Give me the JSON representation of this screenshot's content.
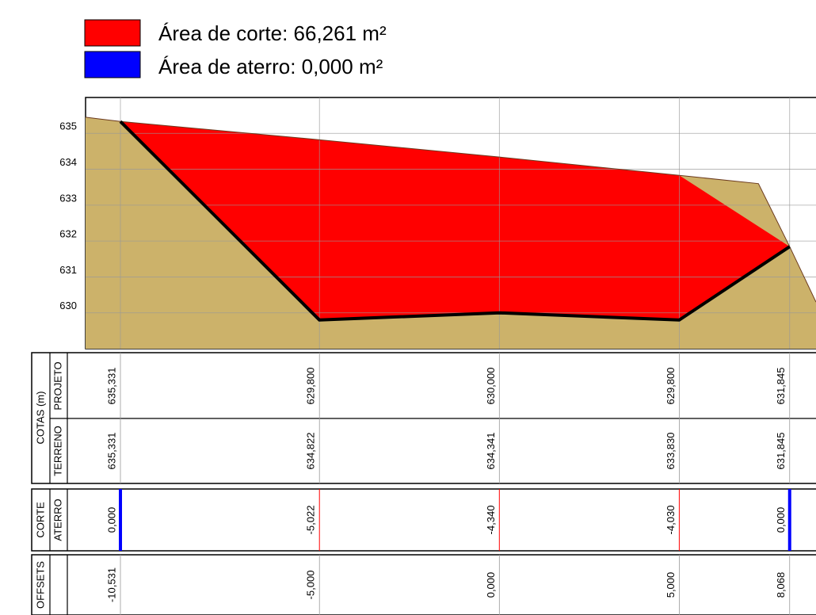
{
  "legend": [
    {
      "label": "Área de corte: 66,261 m²",
      "color": "#ff0000"
    },
    {
      "label": "Área de aterro: 0,000 m²",
      "color": "#0000ff"
    }
  ],
  "chart_data": {
    "type": "section",
    "xlim": [
      -11.5,
      8.8
    ],
    "ylim": [
      629.0,
      636.0
    ],
    "yticks": [
      630,
      631,
      632,
      633,
      634,
      635
    ],
    "grid": true,
    "ground_color": "#ccb26a",
    "cut_color": "#ff0000",
    "fill_color": "#0000ff",
    "ground_x": [
      -11.5,
      -10.531,
      -5,
      0,
      5,
      7.2,
      8.068,
      8.8
    ],
    "ground_y": [
      635.45,
      635.331,
      634.822,
      634.341,
      633.83,
      633.6,
      631.845,
      630.3
    ],
    "offsets": [
      -10.531,
      -5,
      0,
      5,
      8.068
    ],
    "offset_labels": [
      "-10,531",
      "-5,000",
      "0,000",
      "5,000",
      "8,068"
    ],
    "group_cotas": "COTAS (m)",
    "projeto": {
      "label": "PROJETO",
      "values": [
        635.331,
        629.8,
        630.0,
        629.8,
        631.845
      ],
      "value_labels": [
        "635,331",
        "629,800",
        "630,000",
        "629,800",
        "631,845"
      ]
    },
    "terreno": {
      "label": "TERRENO",
      "values": [
        635.331,
        634.822,
        634.341,
        633.83,
        631.845
      ],
      "value_labels": [
        "635,331",
        "634,822",
        "634,341",
        "633,830",
        "631,845"
      ]
    },
    "corte_label": "CORTE",
    "aterro_label": "ATERRO",
    "corte_aterro": {
      "values": [
        0.0,
        -5.022,
        -4.34,
        -4.03,
        0.0
      ],
      "value_labels": [
        "0,000",
        "-5,022",
        "-4,340",
        "-4,030",
        "0,000"
      ]
    },
    "offsets_label": "OFFSETS"
  }
}
